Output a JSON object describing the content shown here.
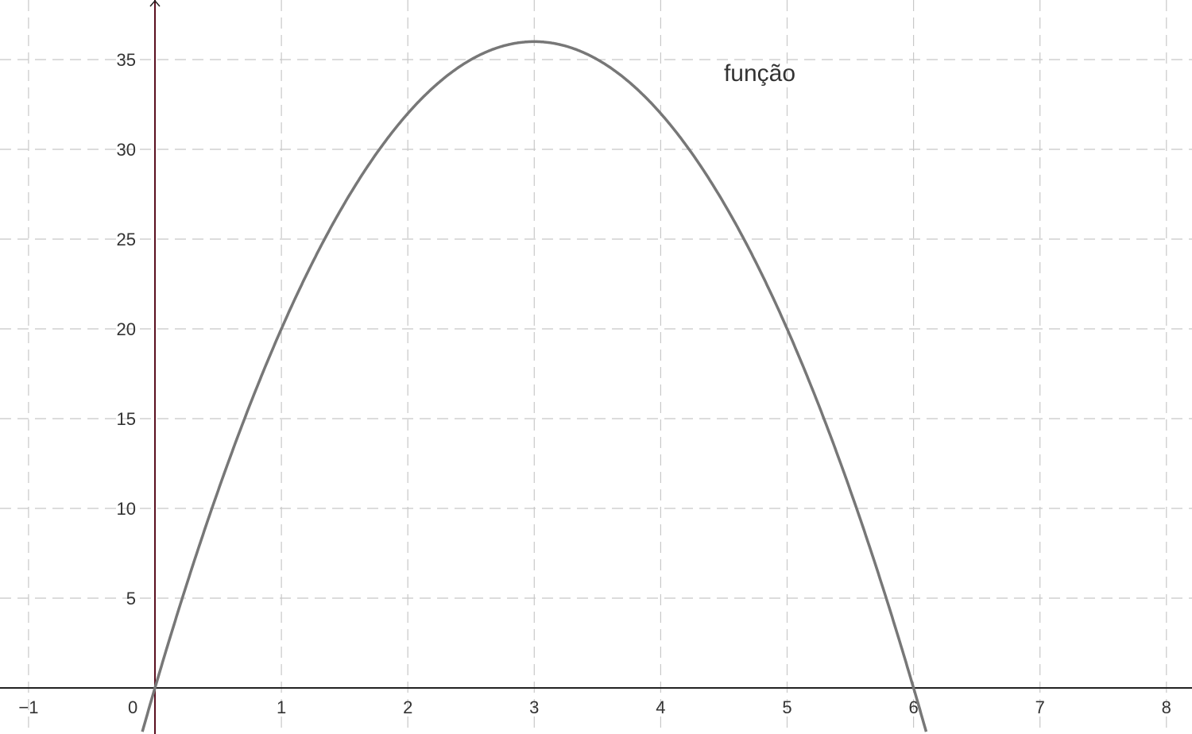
{
  "chart_data": {
    "type": "line",
    "title": "",
    "xlabel": "",
    "ylabel": "",
    "xlim": [
      -1.2,
      8.2
    ],
    "ylim": [
      -2.5,
      38.3
    ],
    "grid": true,
    "x_ticks": [
      -1,
      0,
      1,
      2,
      3,
      4,
      5,
      6,
      7,
      8
    ],
    "x_tick_labels": [
      "−1",
      "0",
      "1",
      "2",
      "3",
      "4",
      "5",
      "6",
      "7",
      "8"
    ],
    "y_ticks": [
      5,
      10,
      15,
      20,
      25,
      30,
      35
    ],
    "y_tick_labels": [
      "5",
      "10",
      "15",
      "20",
      "25",
      "30",
      "35"
    ],
    "series": [
      {
        "name": "função",
        "color": "#777777",
        "x": [
          0,
          1,
          2,
          3,
          4,
          5,
          6
        ],
        "y": [
          0,
          20,
          32,
          36,
          32,
          20,
          0
        ]
      }
    ],
    "annotations": [
      {
        "text": "função",
        "x": 4.5,
        "y": 33.8
      }
    ],
    "colors": {
      "axis": "#222222",
      "y_axis": "#5a1020",
      "grid": "#c8c8c8"
    }
  }
}
